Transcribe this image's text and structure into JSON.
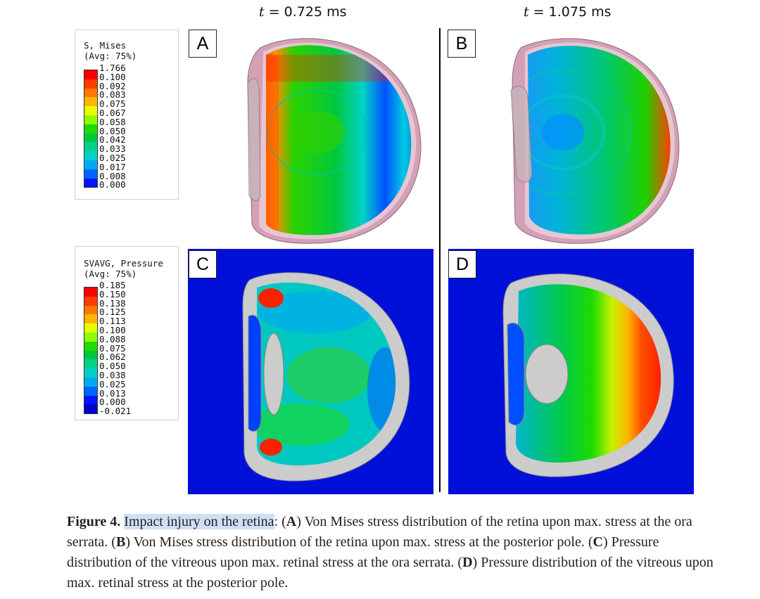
{
  "time_labels": {
    "left": {
      "var": "t",
      "rest": " = 0.725 ms"
    },
    "right": {
      "var": "t",
      "rest": " = 1.075 ms"
    }
  },
  "legend_mises": {
    "title1": "S, Mises",
    "title2": "(Avg: 75%)",
    "ticks": [
      "1.766",
      "0.100",
      "0.092",
      "0.083",
      "0.075",
      "0.067",
      "0.058",
      "0.050",
      "0.042",
      "0.033",
      "0.025",
      "0.017",
      "0.008",
      "0.000"
    ],
    "colors": [
      "#ff0000",
      "#ff3c00",
      "#ff7800",
      "#ffb400",
      "#e6ff00",
      "#8cff00",
      "#1edc00",
      "#00c83c",
      "#00d28c",
      "#00d2c8",
      "#00aaf0",
      "#0064ff",
      "#0014ff"
    ]
  },
  "legend_pressure": {
    "title1": "SVAVG, Pressure",
    "title2": "(Avg: 75%)",
    "ticks": [
      "0.185",
      "0.150",
      "0.138",
      "0.125",
      "0.113",
      "0.100",
      "0.088",
      "0.075",
      "0.062",
      "0.050",
      "0.038",
      "0.025",
      "0.013",
      "0.000",
      "-0.021"
    ],
    "colors": [
      "#ff0000",
      "#ff3c00",
      "#ff7800",
      "#ffb400",
      "#e6ff00",
      "#8cff00",
      "#1edc00",
      "#00c83c",
      "#00d28c",
      "#00d2c8",
      "#00aaf0",
      "#0064ff",
      "#0014ff",
      "#0000d0"
    ]
  },
  "panels": {
    "a": "A",
    "b": "B",
    "c": "C",
    "d": "D"
  },
  "caption": {
    "fig": "Figure 4.",
    "title": "Impact injury on the retina",
    "colon": ":",
    "a_letter": "A",
    "a_text": "Von Mises stress distribution of the retina upon max. stress at the ora serrata.",
    "b_letter": "B",
    "b_text": "Von Mises stress distribution of the retina upon max. stress at the posterior pole.",
    "c_letter": "C",
    "c_text": "Pressure distribution of the vitreous upon max. retinal stress at the ora serrata.",
    "d_letter": "D",
    "d_text": "Pressure distribution of the vitreous upon max. retinal stress at the posterior pole."
  },
  "colors": {
    "plot_background": "#0010d8",
    "tissue_pink": "#d4a0b6",
    "tissue_grey": "#cccccc"
  }
}
